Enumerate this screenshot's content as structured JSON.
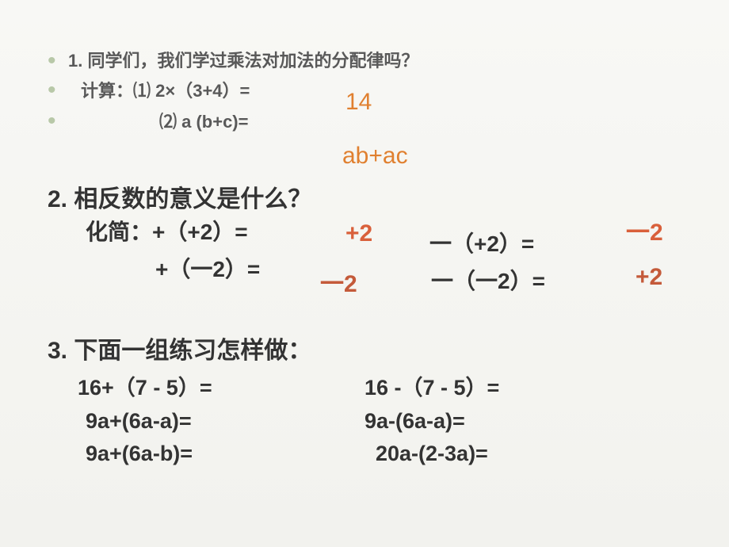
{
  "colors": {
    "background_top": "#f8f8f5",
    "background_bottom": "#f2f2ee",
    "bullet": "#b8c8a8",
    "text_gray": "#595959",
    "text_dark": "#333333",
    "answer_orange": "#e08030",
    "answer_red": "#d9603b",
    "answer_brown": "#c45a3a"
  },
  "typography": {
    "font_family": "Microsoft YaHei",
    "q1_fontsize": 22,
    "q23_fontsize": 30,
    "q2line_fontsize": 28,
    "answer_fontsize": 30
  },
  "q1": {
    "title": "1. 同学们，我们学过乘法对加法的分配律吗？",
    "calc_label": "计算：",
    "line1": "⑴   2×（3+4）=",
    "line2": "⑵   a (b+c)=",
    "ans1": "14",
    "ans2": "ab+ac"
  },
  "q2": {
    "title": "2. 相反数的意义是什么？",
    "simplify_label": "化简：",
    "l1c1": "+（+2）=",
    "l1c2": "一（+2）=",
    "l2c1": "+（一2）=",
    "l2c2": "一（一2）=",
    "ans_l1c1": "+2",
    "ans_l1c2": "一2",
    "ans_l2c1": "一2",
    "ans_l2c2": "+2"
  },
  "q3": {
    "title": "3. 下面一组练习怎样做：",
    "r1c1": "16+（7 - 5）=",
    "r1c2": "16 -（7 - 5）=",
    "r2c1": "9a+(6a-a)=",
    "r2c2": "9a-(6a-a)=",
    "r3c1": "9a+(6a-b)=",
    "r3c2": "20a-(2-3a)="
  }
}
